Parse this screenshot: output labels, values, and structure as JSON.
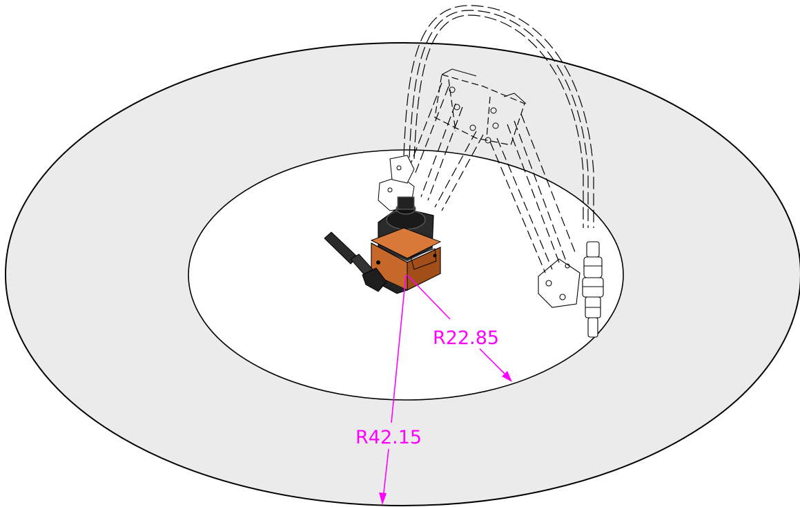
{
  "drawing": {
    "outer_radius_label": "R42.15",
    "inner_radius_label": "R22.85",
    "colors": {
      "dimension": "#ff00ff",
      "outer_zone_fill": "#ebebeb",
      "inner_zone_fill": "#ffffff",
      "outline": "#000000",
      "robot_base_orange": "#b85a1e",
      "robot_motor_dark": "#2a2a2a"
    }
  }
}
